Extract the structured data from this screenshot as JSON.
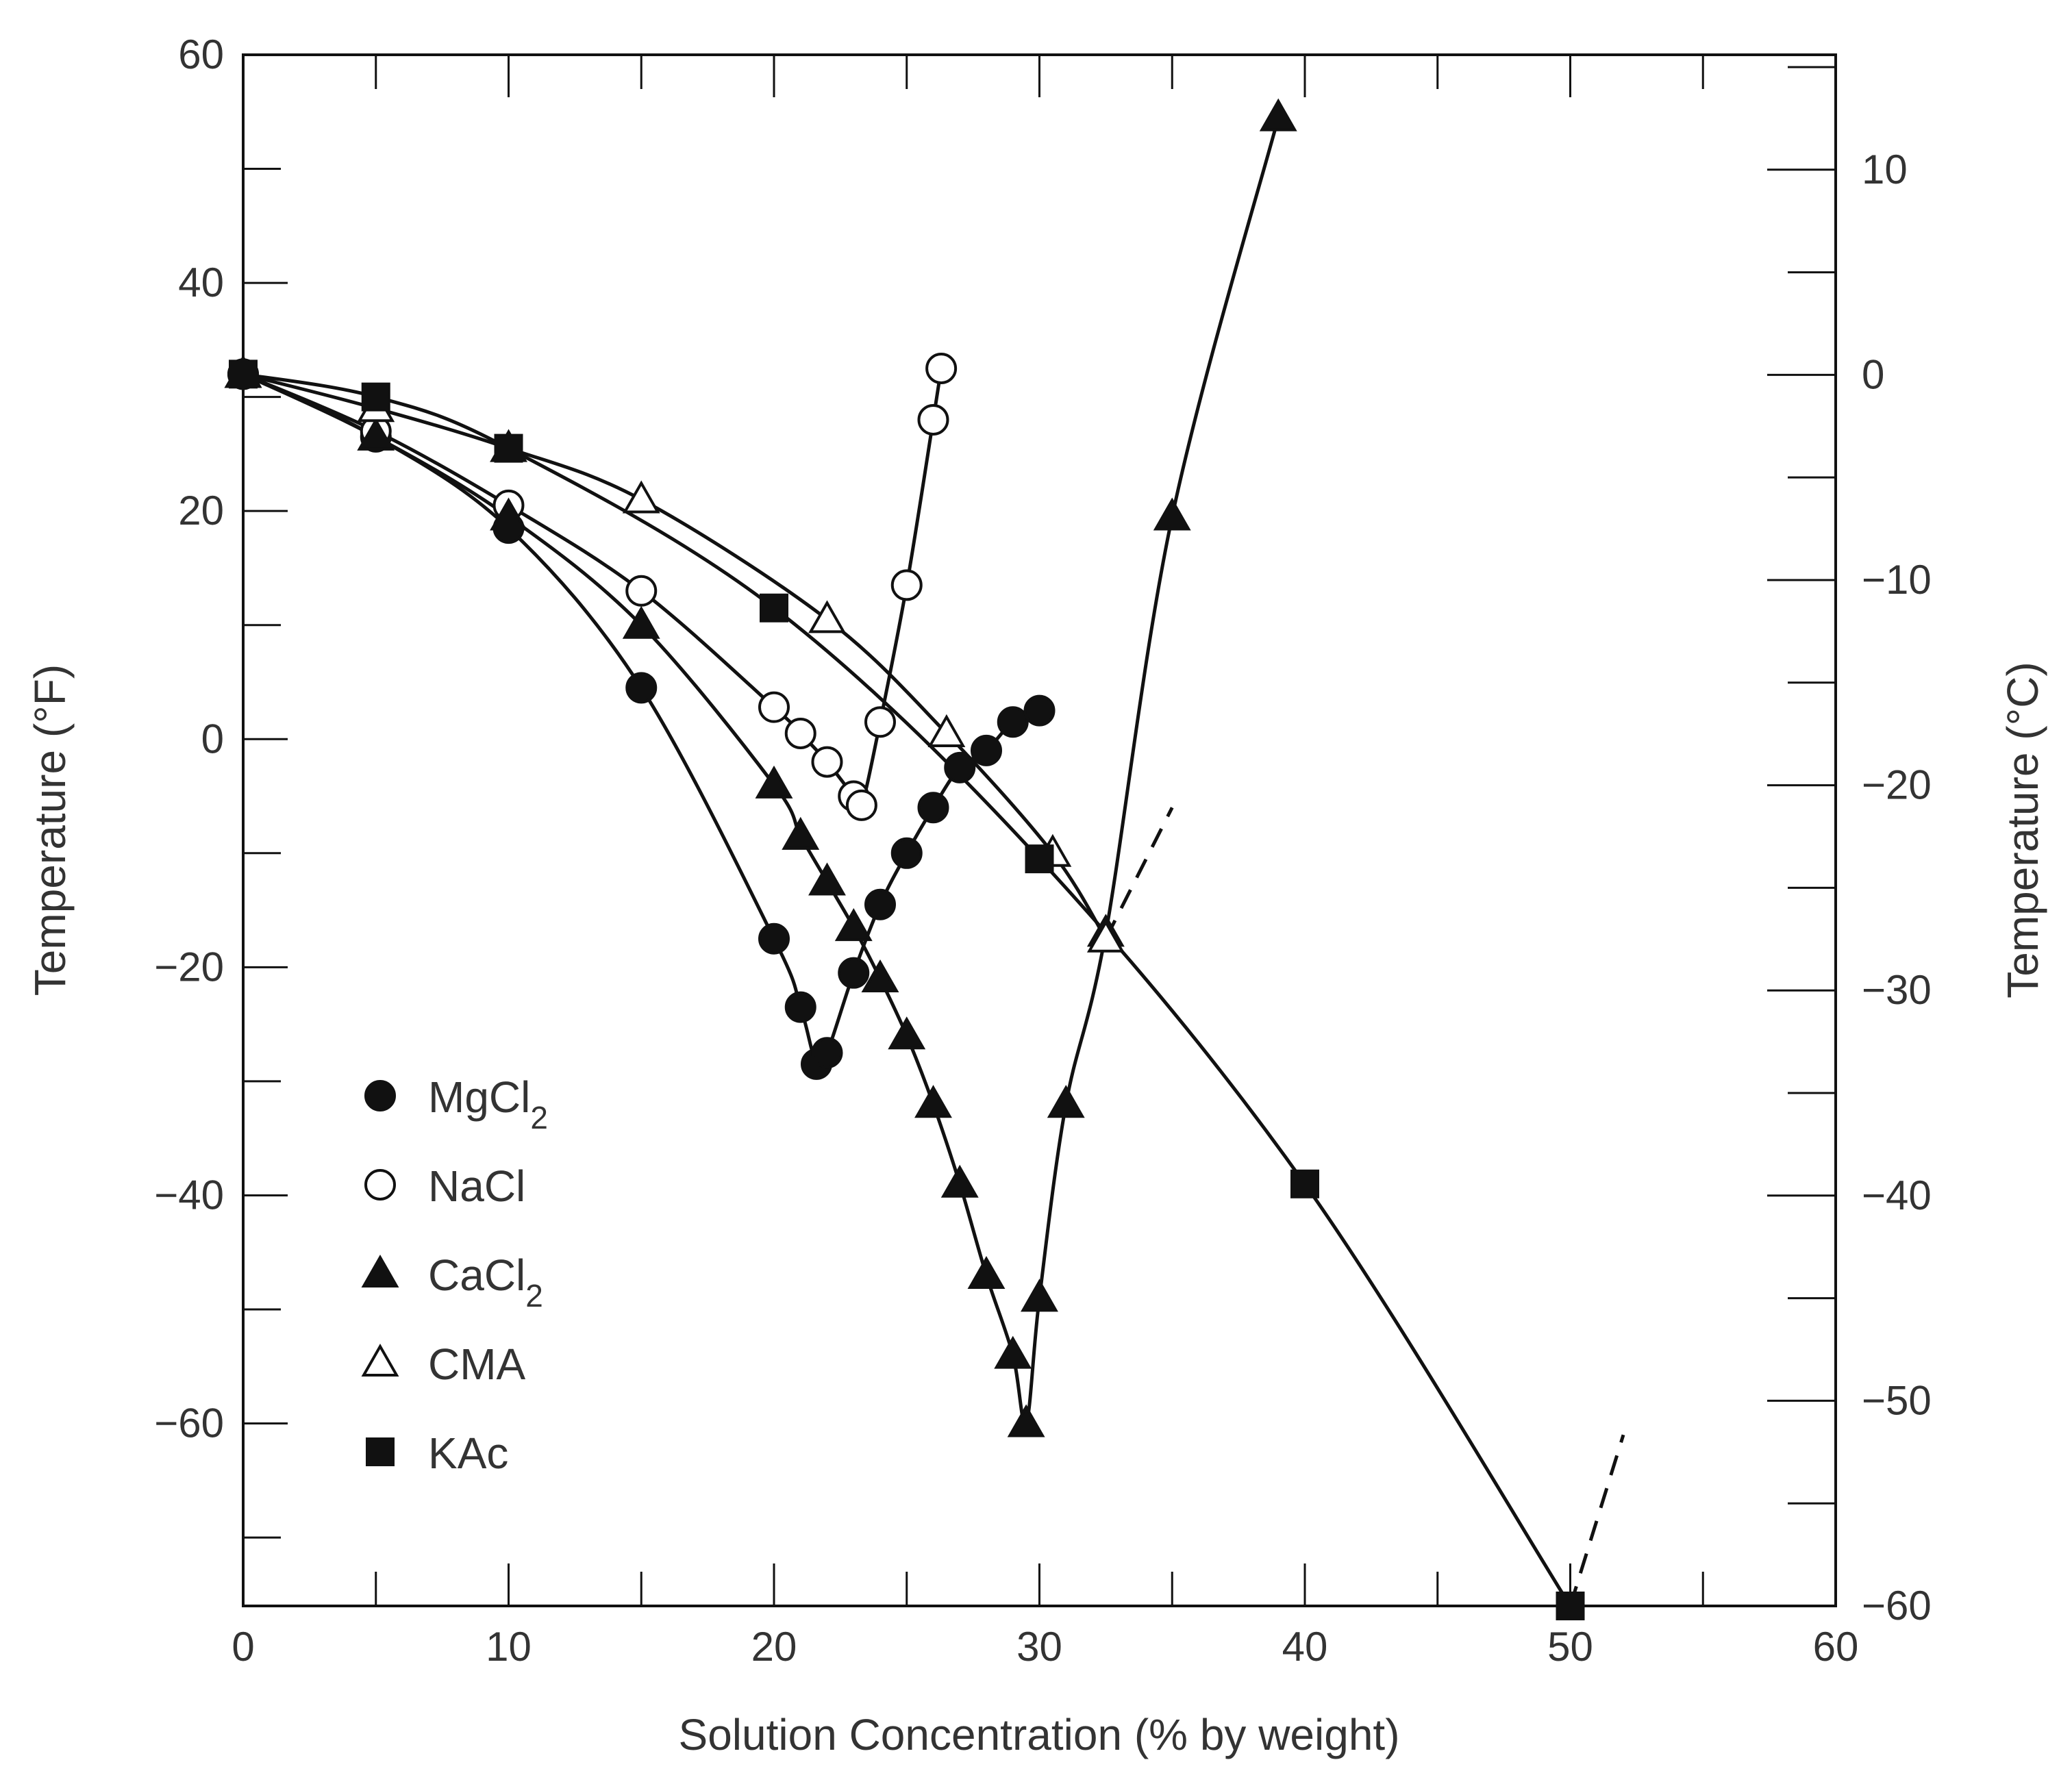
{
  "chart_data": {
    "type": "line",
    "title": "",
    "xlabel": "Solution Concentration (% by weight)",
    "ylabel": "Temperature (°F)",
    "y2label": "Temperature (°C)",
    "xlim": [
      0,
      60
    ],
    "ylim": [
      -76,
      60
    ],
    "y2lim": [
      -60,
      15.6
    ],
    "xticks": [
      0,
      10,
      20,
      30,
      40,
      50,
      60
    ],
    "yticks": [
      60,
      40,
      20,
      0,
      -20,
      -40,
      -60
    ],
    "y2ticks": [
      10,
      0,
      -10,
      -20,
      -30,
      -40,
      -50,
      -60
    ],
    "grid": false,
    "legend_position": "bottom-left",
    "series": [
      {
        "name": "MgCl",
        "subscript": "2",
        "marker": "filled-circle",
        "points": [
          [
            0,
            32
          ],
          [
            5,
            26.5
          ],
          [
            10,
            18.5
          ],
          [
            15,
            4.5
          ],
          [
            20,
            -17.5
          ],
          [
            21,
            -23.5
          ],
          [
            21.6,
            -28.5
          ],
          [
            22,
            -27.5
          ],
          [
            23,
            -20.5
          ],
          [
            24,
            -14.5
          ],
          [
            25,
            -10
          ],
          [
            26,
            -6
          ],
          [
            27,
            -2.5
          ],
          [
            28,
            -1
          ],
          [
            29,
            1.5
          ],
          [
            30,
            2.5
          ]
        ]
      },
      {
        "name": "NaCl",
        "subscript": "",
        "marker": "open-circle",
        "points": [
          [
            0,
            32
          ],
          [
            5,
            27
          ],
          [
            10,
            20.5
          ],
          [
            15,
            13
          ],
          [
            20,
            2.8
          ],
          [
            21,
            0.5
          ],
          [
            22,
            -2
          ],
          [
            23,
            -5
          ],
          [
            23.3,
            -5.8
          ],
          [
            24,
            1.5
          ],
          [
            25,
            13.5
          ],
          [
            26,
            28
          ],
          [
            26.3,
            32.5
          ]
        ]
      },
      {
        "name": "CaCl",
        "subscript": "2",
        "marker": "filled-triangle",
        "points": [
          [
            0,
            32
          ],
          [
            5,
            26.5
          ],
          [
            10,
            19.5
          ],
          [
            15,
            10
          ],
          [
            20,
            -4
          ],
          [
            21,
            -8.5
          ],
          [
            22,
            -12.5
          ],
          [
            23,
            -16.5
          ],
          [
            24,
            -21
          ],
          [
            25,
            -26
          ],
          [
            26,
            -32
          ],
          [
            27,
            -39
          ],
          [
            28,
            -47
          ],
          [
            29,
            -54
          ],
          [
            29.5,
            -60
          ],
          [
            30,
            -49
          ],
          [
            31,
            -32
          ],
          [
            32.5,
            -17
          ],
          [
            35,
            19.5
          ],
          [
            39,
            54.5
          ]
        ]
      },
      {
        "name": "CMA",
        "subscript": "",
        "marker": "open-triangle",
        "points": [
          [
            0,
            32
          ],
          [
            5,
            29
          ],
          [
            10,
            25.5
          ],
          [
            15,
            21
          ],
          [
            22,
            10.5
          ],
          [
            26.5,
            0.5
          ],
          [
            30.5,
            -10
          ],
          [
            32.5,
            -17.5
          ]
        ],
        "dashed_extension": [
          [
            32.5,
            -17.5
          ],
          [
            35,
            -6
          ]
        ]
      },
      {
        "name": "KAc",
        "subscript": "",
        "marker": "filled-square",
        "points": [
          [
            0,
            32
          ],
          [
            5,
            30
          ],
          [
            10,
            25.5
          ],
          [
            20,
            11.5
          ],
          [
            30,
            -10.5
          ],
          [
            40,
            -39
          ],
          [
            50,
            -76
          ]
        ],
        "dashed_extension": [
          [
            50,
            -76
          ],
          [
            52,
            -61
          ]
        ]
      }
    ]
  }
}
